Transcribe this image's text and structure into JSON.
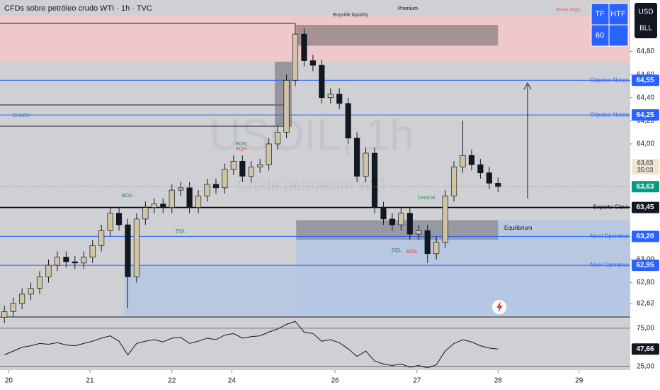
{
  "header": {
    "title": "CFDs sobre petróleo crudo WTI · 1h · TVC",
    "watermark": "USOIL, 1h",
    "watermark_sub": "Crude petroleum WTI"
  },
  "widgets": {
    "tf": "TF",
    "htf": "HTF",
    "tf_value": "60",
    "currency": "USD",
    "unit": "BLL"
  },
  "chart_data": [
    {
      "type": "candlestick",
      "x": [
        0,
        1,
        2,
        3,
        4,
        5,
        6,
        7,
        8,
        9,
        10,
        11,
        12,
        13,
        14,
        15,
        16,
        17,
        18,
        19,
        20,
        21,
        22,
        23,
        24,
        25,
        26,
        27,
        28,
        29,
        30,
        31,
        32,
        33,
        34,
        35,
        36,
        37,
        38,
        39,
        40,
        41,
        42,
        43,
        44,
        45,
        46,
        47,
        48,
        49,
        50,
        51,
        52,
        53,
        54,
        55,
        56
      ],
      "open": [
        62.5,
        62.55,
        62.62,
        62.7,
        62.75,
        62.85,
        62.95,
        63.02,
        62.98,
        62.97,
        63.02,
        63.12,
        63.25,
        63.4,
        63.3,
        62.85,
        63.35,
        63.45,
        63.48,
        63.45,
        63.6,
        63.62,
        63.45,
        63.55,
        63.65,
        63.62,
        63.78,
        63.85,
        63.72,
        63.8,
        63.82,
        64.0,
        64.1,
        64.55,
        64.95,
        64.72,
        64.68,
        64.4,
        64.43,
        64.35,
        64.05,
        63.72,
        63.92,
        63.45,
        63.35,
        63.3,
        63.4,
        63.22,
        63.25,
        63.05,
        63.15,
        63.55,
        63.8,
        63.9,
        63.82,
        63.75,
        63.66
      ],
      "high": [
        62.6,
        62.67,
        62.75,
        62.8,
        62.9,
        63.0,
        63.07,
        63.07,
        63.03,
        63.07,
        63.17,
        63.3,
        63.45,
        63.45,
        63.35,
        63.4,
        63.5,
        63.53,
        63.53,
        63.65,
        63.67,
        63.67,
        63.6,
        63.7,
        63.7,
        63.83,
        63.9,
        63.9,
        63.85,
        63.87,
        64.05,
        64.15,
        64.6,
        65.05,
        65.0,
        64.77,
        64.73,
        64.48,
        64.48,
        64.4,
        64.1,
        63.97,
        63.97,
        63.5,
        63.4,
        63.45,
        63.45,
        63.3,
        63.3,
        63.2,
        63.6,
        63.85,
        64.2,
        63.95,
        63.87,
        63.8,
        63.71
      ],
      "low": [
        62.45,
        62.5,
        62.57,
        62.65,
        62.7,
        62.8,
        62.9,
        62.93,
        62.92,
        62.92,
        62.97,
        63.07,
        63.2,
        63.25,
        62.58,
        62.8,
        63.3,
        63.4,
        63.4,
        63.4,
        63.55,
        63.4,
        63.4,
        63.5,
        63.57,
        63.57,
        63.73,
        63.67,
        63.67,
        63.75,
        63.77,
        63.95,
        64.05,
        64.5,
        64.67,
        64.63,
        64.35,
        64.35,
        64.3,
        64.0,
        63.67,
        63.67,
        63.4,
        63.3,
        63.25,
        63.25,
        63.17,
        63.17,
        62.97,
        63.0,
        63.1,
        63.5,
        63.75,
        63.77,
        63.7,
        63.61,
        63.58
      ],
      "close": [
        62.55,
        62.62,
        62.7,
        62.75,
        62.85,
        62.95,
        63.02,
        62.98,
        62.97,
        63.02,
        63.12,
        63.25,
        63.4,
        63.3,
        62.85,
        63.35,
        63.45,
        63.48,
        63.45,
        63.6,
        63.62,
        63.45,
        63.55,
        63.65,
        63.62,
        63.78,
        63.85,
        63.72,
        63.8,
        63.82,
        64.0,
        64.1,
        64.55,
        64.95,
        64.72,
        64.68,
        64.4,
        64.43,
        64.35,
        64.05,
        63.72,
        63.92,
        63.45,
        63.35,
        63.3,
        63.4,
        63.22,
        63.25,
        63.05,
        63.15,
        63.55,
        63.8,
        63.9,
        63.82,
        63.75,
        63.66,
        63.63
      ],
      "up_color": "#d1c4a4",
      "down_color": "#131722",
      "xlim": [
        -0.5,
        71
      ],
      "ylim": [
        62.515,
        65.11
      ],
      "xticks": [
        {
          "value": 0.5,
          "label": "20"
        },
        {
          "value": 9.7,
          "label": "21"
        },
        {
          "value": 19,
          "label": "22"
        },
        {
          "value": 25.8,
          "label": "24"
        },
        {
          "value": 37.5,
          "label": "26"
        },
        {
          "value": 46.8,
          "label": "27"
        },
        {
          "value": 56,
          "label": "28"
        },
        {
          "value": 65.2,
          "label": "29"
        }
      ],
      "yticks": [
        {
          "value": 64.8,
          "label": "64,80"
        },
        {
          "value": 64.6,
          "label": "64,60"
        },
        {
          "value": 64.4,
          "label": "64,40"
        },
        {
          "value": 64.2,
          "label": "64,20"
        },
        {
          "value": 64.0,
          "label": "64,00"
        },
        {
          "value": 63.0,
          "label": "63,00"
        },
        {
          "value": 62.8,
          "label": "62,80"
        },
        {
          "value": 62.62,
          "label": "62,62"
        }
      ],
      "zones": [
        {
          "from": 64.71,
          "to": 65.11,
          "x0": -0.5,
          "x1": 71,
          "color": "#f4c7c9"
        },
        {
          "from": 64.85,
          "to": 65.03,
          "x0": 33.1,
          "x1": 56,
          "color": "#9a8889"
        },
        {
          "from": 62.515,
          "to": 63.34,
          "x0": 33.1,
          "x1": 71,
          "color": "#b5c7e3"
        },
        {
          "from": 62.515,
          "to": 62.95,
          "x0": 13.6,
          "x1": 71,
          "color": "#b5c7e3"
        },
        {
          "from": 63.17,
          "to": 63.34,
          "x0": 33.1,
          "x1": 56,
          "color": "#8f9096"
        }
      ],
      "levels": [
        {
          "value": 64.55,
          "label": "64,55",
          "text": "Objetivo Alcista",
          "color": "#2962ff"
        },
        {
          "value": 64.25,
          "label": "64,25",
          "text": "Objetivo Alcista",
          "color": "#2962ff"
        },
        {
          "value": 63.45,
          "label": "63,45",
          "text": "Soporte Clave",
          "color": "#000000"
        },
        {
          "value": 63.2,
          "label": "63,20",
          "text": "Nivel Operativo",
          "color": "#2962ff"
        },
        {
          "value": 62.95,
          "label": "62,95",
          "text": "Nivel Operativo",
          "color": "#2962ff"
        }
      ],
      "last_price": {
        "value": 63.63,
        "label": "63,63",
        "countdown": "35:03"
      },
      "current_price": {
        "value": 63.63,
        "label": "63,63"
      },
      "annotations": [
        "Premium",
        "Buyside liquidity",
        "Week High",
        "Equilibrium",
        "CHoCH",
        "BOS",
        "EQH",
        "EQL",
        "BOS",
        "CHoCH",
        "EQL",
        "BOS"
      ]
    },
    {
      "type": "line",
      "x": [
        0,
        1,
        2,
        3,
        4,
        5,
        6,
        7,
        8,
        9,
        10,
        11,
        12,
        13,
        14,
        15,
        16,
        17,
        18,
        19,
        20,
        21,
        22,
        23,
        24,
        25,
        26,
        27,
        28,
        29,
        30,
        31,
        32,
        33,
        34,
        35,
        36,
        37,
        38,
        39,
        40,
        41,
        42,
        43,
        44,
        45,
        46,
        47,
        48,
        49,
        50,
        51,
        52,
        53,
        54,
        55,
        56
      ],
      "values": [
        40,
        45,
        50,
        52,
        55,
        54,
        56,
        53,
        52,
        55,
        58,
        62,
        65,
        58,
        40,
        55,
        58,
        60,
        57,
        62,
        63,
        55,
        58,
        62,
        60,
        66,
        68,
        62,
        64,
        65,
        70,
        74,
        80,
        84,
        70,
        68,
        58,
        60,
        56,
        48,
        38,
        45,
        32,
        28,
        26,
        28,
        24,
        26,
        23,
        27,
        45,
        55,
        60,
        57,
        52,
        49,
        47.66
      ],
      "color": "#131722",
      "ylim": [
        20,
        87
      ],
      "yticks": [
        {
          "value": 75,
          "label": "75,00"
        },
        {
          "value": 25,
          "label": "25,00"
        }
      ],
      "last": {
        "value": 47.66,
        "label": "47,66"
      }
    }
  ]
}
